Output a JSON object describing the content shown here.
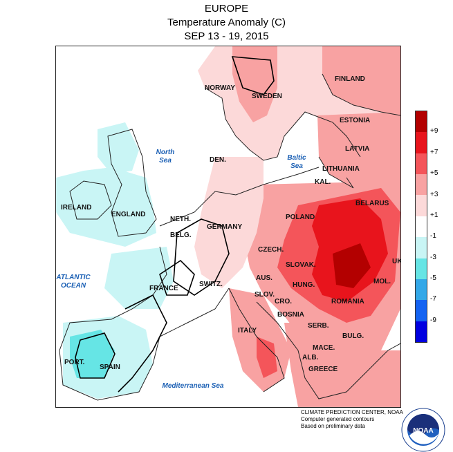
{
  "title": {
    "line1": "EUROPE",
    "line2": "Temperature Anomaly (C)",
    "line3": "SEP 13 - 19, 2015"
  },
  "countries": [
    {
      "key": "finland",
      "label": "FINLAND"
    },
    {
      "key": "norway",
      "label": "NORWAY"
    },
    {
      "key": "sweden",
      "label": "SWEDEN"
    },
    {
      "key": "estonia",
      "label": "ESTONIA"
    },
    {
      "key": "latvia",
      "label": "LATVIA"
    },
    {
      "key": "lithuania",
      "label": "LITHUANIA"
    },
    {
      "key": "den",
      "label": "DEN."
    },
    {
      "key": "kal",
      "label": "KAL."
    },
    {
      "key": "belarus",
      "label": "BELARUS"
    },
    {
      "key": "ireland",
      "label": "IRELAND"
    },
    {
      "key": "england",
      "label": "ENGLAND"
    },
    {
      "key": "poland",
      "label": "POLAND"
    },
    {
      "key": "neth",
      "label": "NETH."
    },
    {
      "key": "germany",
      "label": "GERMANY"
    },
    {
      "key": "belg",
      "label": "BELG."
    },
    {
      "key": "czech",
      "label": "CZECH."
    },
    {
      "key": "uk_ukraine",
      "label": "UK"
    },
    {
      "key": "slovak",
      "label": "SLOVAK."
    },
    {
      "key": "france",
      "label": "FRANCE"
    },
    {
      "key": "switz",
      "label": "SWITZ."
    },
    {
      "key": "aus",
      "label": "AUS."
    },
    {
      "key": "hung",
      "label": "HUNG."
    },
    {
      "key": "mol",
      "label": "MOL."
    },
    {
      "key": "slov",
      "label": "SLOV."
    },
    {
      "key": "cro",
      "label": "CRO."
    },
    {
      "key": "romania",
      "label": "ROMANIA"
    },
    {
      "key": "bosnia",
      "label": "BOSNIA"
    },
    {
      "key": "serb",
      "label": "SERB."
    },
    {
      "key": "italy",
      "label": "ITALY"
    },
    {
      "key": "bulg",
      "label": "BULG."
    },
    {
      "key": "mace",
      "label": "MACE."
    },
    {
      "key": "port",
      "label": "PORT."
    },
    {
      "key": "spain",
      "label": "SPAIN"
    },
    {
      "key": "alb",
      "label": "ALB."
    },
    {
      "key": "greece",
      "label": "GREECE"
    }
  ],
  "seas": {
    "north_sea": {
      "line1": "North",
      "line2": "Sea"
    },
    "baltic_sea": {
      "line1": "Baltic",
      "line2": "Sea"
    },
    "atlantic": {
      "line1": "ATLANTIC",
      "line2": "OCEAN"
    },
    "mediterranean": {
      "line1": "Mediterranean Sea"
    }
  },
  "legend": {
    "labels": [
      "+9",
      "+7",
      "+5",
      "+3",
      "+1",
      "-1",
      "-3",
      "-5",
      "-7",
      "-9"
    ],
    "colors": [
      "#b30000",
      "#e8141c",
      "#f4555a",
      "#f8a2a2",
      "#fcd9d9",
      "#ffffff",
      "#c9f5f5",
      "#66e5e5",
      "#33a8e8",
      "#1463f2",
      "#0000e0"
    ]
  },
  "credit": {
    "line1": "CLIMATE PREDICTION CENTER, NOAA",
    "line2": "Computer generated contours",
    "line3": "Based on preliminary data"
  },
  "logo": {
    "text": "NOAA",
    "ring_text": "NATIONAL OCEANIC AND ATMOSPHERIC ADMINISTRATION · U.S. DEPARTMENT OF COMMERCE"
  }
}
